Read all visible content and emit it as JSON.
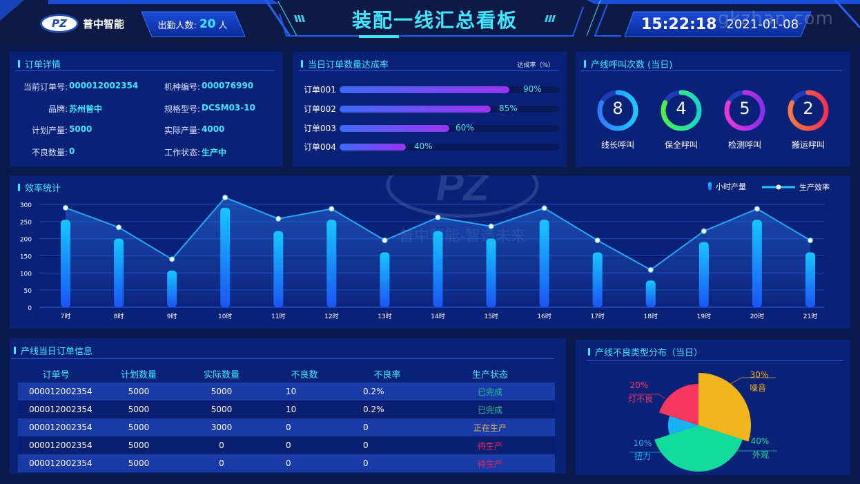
{
  "header": {
    "brand": "普中智能",
    "logo_text": "PZ",
    "attendance_label": "出勤人数:",
    "attendance_value": "20",
    "attendance_unit": "人",
    "title": "装配一线汇总看板",
    "time": "15:22:18",
    "date": "2021-01-08",
    "watermark": "gkzhan.com"
  },
  "order_detail": {
    "title": "订单详情",
    "fields": [
      {
        "label": "当前订单号:",
        "value": "000012002354"
      },
      {
        "label": "机种编号:",
        "value": "000076990"
      },
      {
        "label": "品牌:",
        "value": "苏州普中"
      },
      {
        "label": "规格型号:",
        "value": "DCSM03-10"
      },
      {
        "label": "计划产量:",
        "value": "5000"
      },
      {
        "label": "实际产量:",
        "value": "4000"
      },
      {
        "label": "不良数量:",
        "value": "0"
      },
      {
        "label": "工作状态:",
        "value": "生产中"
      }
    ]
  },
  "completion": {
    "title": "当日订单数量达成率",
    "unit_label": "达成率（%）",
    "items": [
      {
        "label": "订单001",
        "value": 90,
        "pct": "90%"
      },
      {
        "label": "订单002",
        "value": 85,
        "pct": "85%"
      },
      {
        "label": "订单003",
        "value": 60,
        "pct": "60%"
      },
      {
        "label": "订单004",
        "value": 40,
        "pct": "40%"
      }
    ]
  },
  "calls": {
    "title": "产线呼叫次数 (当日)",
    "items": [
      {
        "label": "线长呼叫",
        "value": "8",
        "color_a": "#2f7bff",
        "color_b": "#1ec8ff"
      },
      {
        "label": "保全呼叫",
        "value": "4",
        "color_a": "#4cf04a",
        "color_b": "#17d6c8"
      },
      {
        "label": "检测呼叫",
        "value": "5",
        "color_a": "#e93ad6",
        "color_b": "#8a2cf0"
      },
      {
        "label": "搬运呼叫",
        "value": "2",
        "color_a": "#ff7a45",
        "color_b": "#f5304f"
      }
    ]
  },
  "efficiency": {
    "title": "效率统计",
    "legend_bar": "小时产量",
    "legend_line": "生产效率",
    "watermark_text": "普中智能-智造未来"
  },
  "orders_table": {
    "title": "产线当日订单信息",
    "columns": [
      "订单号",
      "计划数量",
      "实际数量",
      "不良数",
      "不良率",
      "生产状态"
    ],
    "rows": [
      {
        "id": "000012002354",
        "plan": "5000",
        "actual": "5000",
        "defects": "10",
        "rate": "0.2%",
        "status": "已完成",
        "status_color": "#21c48c"
      },
      {
        "id": "000012002354",
        "plan": "5000",
        "actual": "5000",
        "defects": "10",
        "rate": "0.2%",
        "status": "已完成",
        "status_color": "#21c48c"
      },
      {
        "id": "000012002354",
        "plan": "5000",
        "actual": "3000",
        "defects": "0",
        "rate": "0",
        "status": "正在生产",
        "status_color": "#e6b85a"
      },
      {
        "id": "000012002354",
        "plan": "5000",
        "actual": "0",
        "defects": "0",
        "rate": "0",
        "status": "待生产",
        "status_color": "#e8285a"
      },
      {
        "id": "000012002354",
        "plan": "5000",
        "actual": "0",
        "defects": "0",
        "rate": "0",
        "status": "待生产",
        "status_color": "#e8285a"
      }
    ]
  },
  "defect_types": {
    "title": "产线不良类型分布（当日）"
  },
  "chart_data": [
    {
      "type": "bar",
      "title": "当日订单数量达成率",
      "categories": [
        "订单001",
        "订单002",
        "订单003",
        "订单004"
      ],
      "values": [
        90,
        85,
        60,
        40
      ],
      "xlabel": "达成率（%）",
      "orientation": "horizontal",
      "xlim": [
        0,
        100
      ]
    },
    {
      "type": "bar",
      "title": "效率统计",
      "categories": [
        "7时",
        "8时",
        "9时",
        "10时",
        "11时",
        "12时",
        "13时",
        "14时",
        "15时",
        "16时",
        "17时",
        "18时",
        "19时",
        "20时",
        "21时"
      ],
      "series": [
        {
          "name": "小时产量",
          "type": "bar",
          "values": [
            255,
            200,
            107,
            290,
            222,
            255,
            160,
            222,
            200,
            255,
            160,
            78,
            190,
            255,
            160
          ]
        },
        {
          "name": "生产效率",
          "type": "line",
          "values": [
            290,
            233,
            140,
            320,
            258,
            287,
            195,
            262,
            236,
            289,
            195,
            109,
            222,
            287,
            195
          ]
        }
      ],
      "yticks": [
        0,
        50,
        100,
        150,
        200,
        250,
        300
      ],
      "ylim": [
        0,
        300
      ],
      "grid": true,
      "legend_position": "top-right"
    },
    {
      "type": "pie",
      "title": "产线不良类型分布（当日）",
      "variant": "rose",
      "slices": [
        {
          "label": "噪音",
          "pct": "30%",
          "value": 30,
          "color": "#f0b41e"
        },
        {
          "label": "外观",
          "pct": "40%",
          "value": 40,
          "color": "#12dc9c"
        },
        {
          "label": "扭力",
          "pct": "10%",
          "value": 10,
          "color": "#16b4f5"
        },
        {
          "label": "灯不良",
          "pct": "20%",
          "value": 20,
          "color": "#f5385f"
        }
      ]
    }
  ]
}
